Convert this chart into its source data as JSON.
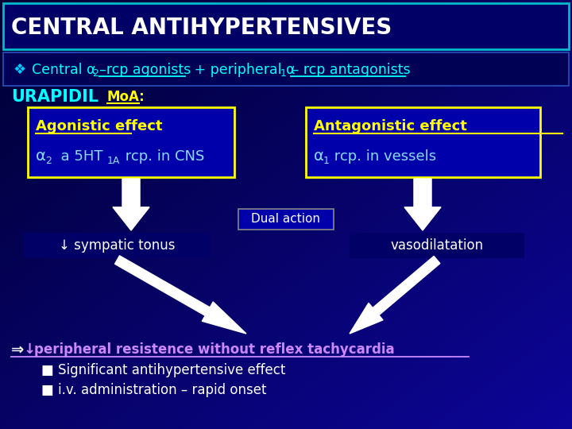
{
  "bg_gradient_top": "#000033",
  "bg_color": "#000080",
  "title_text": "CENTRAL ANTIHYPERTENSIVES",
  "title_color": "#FFFFFF",
  "title_border": "#00CCCC",
  "subtitle_color": "#00FFFF",
  "subtitle_border": "#3333AA",
  "urapidil_color": "#00FFFF",
  "moa_color": "#FFFF00",
  "box_bg": "#0000AA",
  "box_border": "#FFFF00",
  "box1_title": "Agonistic effect",
  "box1_title_color": "#FFFF00",
  "box1_line2_color": "#88DDFF",
  "box2_title": "Antagonistic effect",
  "box2_title_color": "#FFFF00",
  "box2_line2_color": "#88DDFF",
  "dual_text": "Dual action",
  "dual_color": "#FFFFFF",
  "dual_bg": "#0000AA",
  "dual_border": "#888888",
  "result1_text": "↓ sympatic tonus",
  "result2_text": "vasodilatation",
  "result_color": "#FFFFFF",
  "result_bg": "#000066",
  "arrow_color": "#FFFFFF",
  "final_color": "#CC88FF",
  "final_text": "peripheral resistence without reflex tachycardia",
  "bullet1": "Significant antihypertensive effect",
  "bullet2": "i.v. administration – rapid onset",
  "bullet_color": "#FFFFFF"
}
